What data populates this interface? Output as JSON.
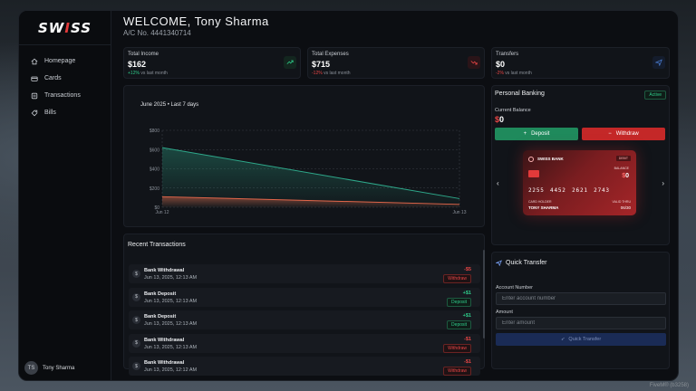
{
  "app": {
    "logo_prefix": "SW",
    "logo_mid": "I",
    "logo_suffix": "SS"
  },
  "sidebar": {
    "items": [
      {
        "label": "Homepage",
        "icon": "home-icon"
      },
      {
        "label": "Cards",
        "icon": "card-icon"
      },
      {
        "label": "Transactions",
        "icon": "transactions-icon"
      },
      {
        "label": "Bills",
        "icon": "tag-icon"
      }
    ],
    "user": {
      "initials": "TS",
      "name": "Tony Sharma"
    }
  },
  "header": {
    "welcome": "WELCOME, Tony Sharma",
    "account": "A/C No. 4441340714"
  },
  "stats": [
    {
      "label": "Total Income",
      "value": "$162",
      "change": "+12%",
      "suffix": " vs last month",
      "trend": "up",
      "icon": "trending-up-icon",
      "color": "#2ecc8a"
    },
    {
      "label": "Total Expenses",
      "value": "$715",
      "change": "-12%",
      "suffix": " vs last month",
      "trend": "down",
      "icon": "trending-down-icon",
      "color": "#e84545"
    },
    {
      "label": "Transfers",
      "value": "$0",
      "change": "-2%",
      "suffix": " vs last month",
      "trend": "down",
      "icon": "send-icon",
      "color": "#4a7fd6"
    }
  ],
  "chart_data": {
    "type": "area",
    "title": "June 2025 • Last 7 days",
    "x": [
      "Jun 12",
      "Jun 13"
    ],
    "y_ticks": [
      "$0",
      "$200",
      "$400",
      "$600",
      "$800"
    ],
    "ylim": [
      0,
      800
    ],
    "grid": true,
    "series": [
      {
        "values": [
          620,
          90
        ],
        "color": "#2ea88a"
      },
      {
        "values": [
          110,
          30
        ],
        "color": "#e2664a"
      }
    ]
  },
  "transactions": {
    "title": "Recent Transactions",
    "rows": [
      {
        "title": "Bank Withdrawal",
        "date": "Jun 13, 2025, 12:13 AM",
        "amount": "-$5",
        "type": "Withdraw",
        "kind": "w"
      },
      {
        "title": "Bank Deposit",
        "date": "Jun 13, 2025, 12:13 AM",
        "amount": "+$1",
        "type": "Deposit",
        "kind": "d"
      },
      {
        "title": "Bank Deposit",
        "date": "Jun 13, 2025, 12:13 AM",
        "amount": "+$1",
        "type": "Deposit",
        "kind": "d"
      },
      {
        "title": "Bank Withdrawal",
        "date": "Jun 13, 2025, 12:13 AM",
        "amount": "-$1",
        "type": "Withdraw",
        "kind": "w"
      },
      {
        "title": "Bank Withdrawal",
        "date": "Jun 13, 2025, 12:12 AM",
        "amount": "-$1",
        "type": "Withdraw",
        "kind": "w"
      }
    ],
    "dot_symbol": "$"
  },
  "personal_banking": {
    "title": "Personal Banking",
    "status": "Active",
    "balance_label": "Current Balance",
    "balance_currency": "$",
    "balance_amount": "0",
    "deposit_label": "Deposit",
    "withdraw_label": "Withdraw",
    "card": {
      "bank_name": "SWISS BANK",
      "type": "DEBIT",
      "balance_label": "BALANCE",
      "balance_currency": "$",
      "balance_amount": "0",
      "number": "2255 4452 2621 2743",
      "holder_label": "CARD HOLDER",
      "holder": "TONY SHARMA",
      "valid_label": "VALID THRU",
      "valid": "06/30"
    }
  },
  "quick_transfer": {
    "title": "Quick Transfer",
    "account_label": "Account Number",
    "account_placeholder": "Enter account number",
    "amount_label": "Amount",
    "amount_placeholder": "Enter amount",
    "button_label": "Quick Transfer"
  },
  "watermark": "FiveM® (b3258)"
}
